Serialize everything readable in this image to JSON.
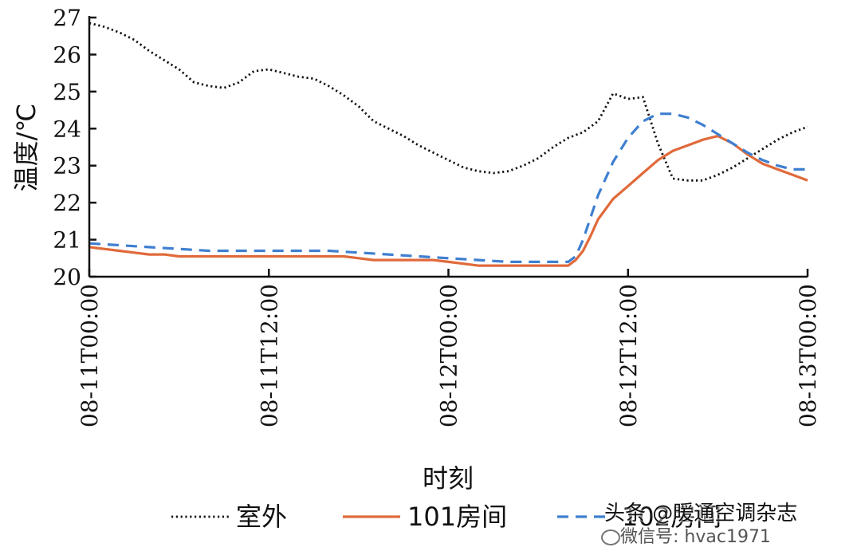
{
  "chart_data": {
    "type": "line",
    "xlabel": "时刻",
    "ylabel": "温度/℃",
    "ylim": [
      20,
      27
    ],
    "xlim": [
      0,
      48
    ],
    "yticks": [
      "20",
      "21",
      "22",
      "23",
      "24",
      "25",
      "26",
      "27"
    ],
    "xticks": [
      {
        "x": 0,
        "label": "08-11T00:00"
      },
      {
        "x": 12,
        "label": "08-11T12:00"
      },
      {
        "x": 24,
        "label": "08-12T00:00"
      },
      {
        "x": 36,
        "label": "08-12T12:00"
      },
      {
        "x": 48,
        "label": "08-13T00:00"
      }
    ],
    "legend_position": "bottom",
    "series": [
      {
        "name": "室外",
        "color": "#111111",
        "style": "dotted",
        "x": [
          0,
          1,
          2,
          3,
          4,
          5,
          6,
          7,
          8,
          9,
          10,
          11,
          12,
          13,
          14,
          15,
          16,
          17,
          18,
          19,
          20,
          21,
          22,
          23,
          24,
          25,
          26,
          27,
          28,
          29,
          30,
          31,
          32,
          33,
          34,
          35,
          36,
          37,
          38,
          39,
          40,
          41,
          42,
          43,
          44,
          45,
          46,
          47,
          48
        ],
        "values": [
          26.85,
          26.75,
          26.6,
          26.4,
          26.1,
          25.85,
          25.6,
          25.25,
          25.15,
          25.1,
          25.25,
          25.55,
          25.6,
          25.5,
          25.4,
          25.35,
          25.15,
          24.9,
          24.6,
          24.2,
          24.0,
          23.8,
          23.55,
          23.35,
          23.15,
          22.95,
          22.85,
          22.8,
          22.85,
          23.0,
          23.2,
          23.5,
          23.75,
          23.9,
          24.2,
          24.95,
          24.8,
          24.85,
          23.6,
          22.65,
          22.6,
          22.6,
          22.75,
          22.95,
          23.2,
          23.45,
          23.7,
          23.9,
          24.05
        ]
      },
      {
        "name": "101房间",
        "color": "#e06a3b",
        "style": "solid",
        "x": [
          0,
          1,
          2,
          3,
          4,
          5,
          6,
          7,
          8,
          9,
          10,
          11,
          12,
          13,
          14,
          15,
          16,
          17,
          18,
          19,
          20,
          21,
          22,
          23,
          24,
          25,
          26,
          27,
          28,
          29,
          30,
          31,
          32,
          32.5,
          33,
          33.5,
          34,
          35,
          36,
          37,
          38,
          39,
          40,
          41,
          42,
          43,
          44,
          45,
          46,
          47,
          48
        ],
        "values": [
          20.8,
          20.75,
          20.7,
          20.65,
          20.6,
          20.6,
          20.55,
          20.55,
          20.55,
          20.55,
          20.55,
          20.55,
          20.55,
          20.55,
          20.55,
          20.55,
          20.55,
          20.55,
          20.5,
          20.45,
          20.45,
          20.45,
          20.45,
          20.45,
          20.4,
          20.35,
          20.3,
          20.3,
          20.3,
          20.3,
          20.3,
          20.3,
          20.3,
          20.45,
          20.7,
          21.1,
          21.55,
          22.1,
          22.45,
          22.8,
          23.15,
          23.4,
          23.55,
          23.7,
          23.8,
          23.6,
          23.3,
          23.05,
          22.9,
          22.75,
          22.6
        ]
      },
      {
        "name": "102房间",
        "color": "#3f7fd0",
        "style": "dashed",
        "x": [
          0,
          2,
          4,
          6,
          8,
          10,
          12,
          14,
          16,
          18,
          20,
          22,
          24,
          26,
          28,
          30,
          31,
          32,
          32.5,
          33,
          33.5,
          34,
          35,
          36,
          37,
          38,
          39,
          40,
          41,
          42,
          43,
          44,
          45,
          46,
          47,
          48
        ],
        "values": [
          20.9,
          20.85,
          20.8,
          20.75,
          20.7,
          20.7,
          20.7,
          20.7,
          20.7,
          20.65,
          20.6,
          20.55,
          20.5,
          20.45,
          20.4,
          20.4,
          20.4,
          20.4,
          20.55,
          21.0,
          21.6,
          22.2,
          23.1,
          23.75,
          24.2,
          24.4,
          24.4,
          24.3,
          24.1,
          23.85,
          23.6,
          23.35,
          23.15,
          23.0,
          22.9,
          22.9
        ]
      }
    ]
  },
  "watermark": {
    "line1": "头条 @暖通空调杂志",
    "line2": "微信号: hvac1971"
  }
}
